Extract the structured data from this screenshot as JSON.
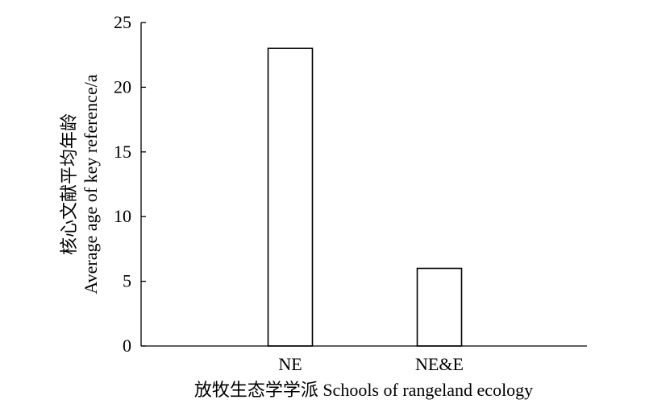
{
  "chart_data": {
    "type": "bar",
    "categories": [
      "NE",
      "NE&E"
    ],
    "values": [
      23,
      6
    ],
    "xlabel": "放牧生态学学派 Schools of rangeland ecology",
    "ylabel_zh": "核心文献平均年龄",
    "ylabel_en": "Average age of key reference/a",
    "ylim": [
      0,
      25
    ],
    "yticks": [
      0,
      5,
      10,
      15,
      20,
      25
    ],
    "grid": false,
    "colors": {
      "bar_fill": "#ffffff",
      "bar_stroke": "#000000",
      "axis": "#000000"
    }
  }
}
